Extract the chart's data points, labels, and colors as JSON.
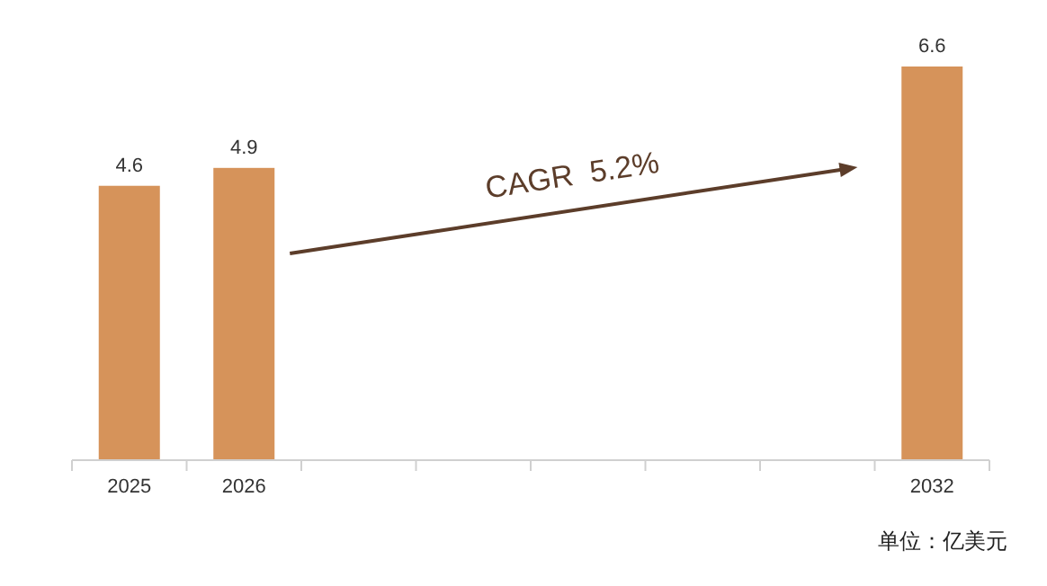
{
  "chart_data": {
    "type": "bar",
    "categories": [
      "2025",
      "2026",
      null,
      null,
      null,
      null,
      null,
      "2032"
    ],
    "values": [
      4.6,
      4.9,
      null,
      null,
      null,
      null,
      null,
      6.6
    ],
    "color": "#d6935a",
    "data_labels": true,
    "annotations": [
      "CAGR  5.2%",
      "单位：亿美元"
    ]
  }
}
